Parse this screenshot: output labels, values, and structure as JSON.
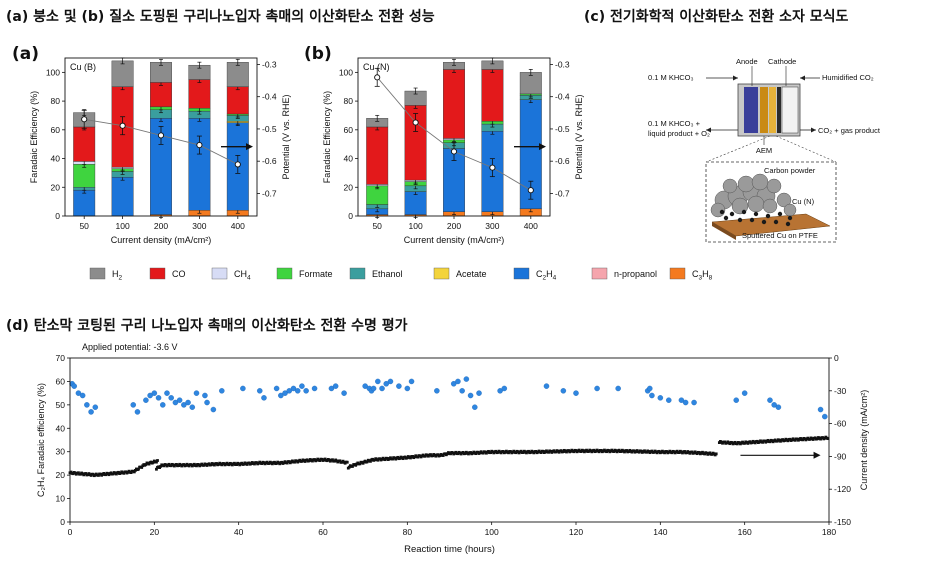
{
  "headers": {
    "ab": "(a) 붕소 및 (b) 질소 도핑된 구리나노입자 촉매의 이산화탄소 전환 성능",
    "c": "(c) 전기화학적 이산화탄소 전환 소자 모식도",
    "d": "(d) 탄소막 코팅된 구리 나노입자 촉매의 이산화탄소 전환 수명 평가"
  },
  "panel_labels": {
    "a": "(a)",
    "b": "(b)"
  },
  "legend": [
    {
      "name": "H",
      "sub": "2",
      "color": "#8c8c8c"
    },
    {
      "name": "CO",
      "sub": "",
      "color": "#e3191b"
    },
    {
      "name": "CH",
      "sub": "4",
      "color": "#d7dcf5"
    },
    {
      "name": "Formate",
      "sub": "",
      "color": "#3fd43f"
    },
    {
      "name": "Ethanol",
      "sub": "",
      "color": "#3a9e9e"
    },
    {
      "name": "Acetate",
      "sub": "",
      "color": "#f3d43c"
    },
    {
      "name": "C",
      "sub": "2",
      "name2": "H",
      "sub2": "4",
      "color": "#1b74d9"
    },
    {
      "name": "n-propanol",
      "sub": "",
      "color": "#f5a5ad"
    },
    {
      "name": "C",
      "sub": "3",
      "name2": "H",
      "sub2": "8",
      "color": "#f47a1f"
    }
  ],
  "chart_data": [
    {
      "type": "bar",
      "name": "Cu (B)",
      "stacked": true,
      "categories": [
        "50",
        "100",
        "200",
        "300",
        "400"
      ],
      "series_order": [
        "C3H8",
        "C2H4",
        "n-propanol",
        "Acetate",
        "Ethanol",
        "Formate",
        "CH4",
        "CO",
        "H2"
      ],
      "series": {
        "C3H8": [
          0,
          0,
          1,
          4,
          4
        ],
        "C2H4": [
          18,
          27,
          67,
          64,
          61
        ],
        "n-propanol": [
          0,
          0,
          0,
          0,
          0
        ],
        "Acetate": [
          0,
          0,
          0,
          0,
          1
        ],
        "Ethanol": [
          2,
          4,
          6,
          5,
          4
        ],
        "Formate": [
          16,
          2,
          2,
          2,
          1
        ],
        "CH4": [
          2,
          1,
          0,
          0,
          0
        ],
        "CO": [
          24,
          56,
          17,
          20,
          19
        ],
        "H2": [
          10,
          18,
          14,
          10,
          17
        ]
      },
      "potential": [
        -0.47,
        -0.49,
        -0.52,
        -0.55,
        -0.61
      ],
      "xlabel": "Current density (mA/cm²)",
      "ylabel": "Faradaic Efficiency (%)",
      "y2label": "Potential (V vs. RHE)",
      "ylim": [
        0,
        110
      ],
      "y2lim": [
        -0.77,
        -0.28
      ],
      "yticks": [
        0,
        20,
        40,
        60,
        80,
        100
      ],
      "y2ticks": [
        "-0.3",
        "-0.4",
        "-0.5",
        "-0.6",
        "-0.7"
      ]
    },
    {
      "type": "bar",
      "name": "Cu (N)",
      "stacked": true,
      "categories": [
        "50",
        "100",
        "200",
        "300",
        "400"
      ],
      "series_order": [
        "C3H8",
        "C2H4",
        "n-propanol",
        "Acetate",
        "Ethanol",
        "Formate",
        "CH4",
        "CO",
        "H2"
      ],
      "series": {
        "C3H8": [
          1,
          1,
          3,
          3,
          5
        ],
        "C2H4": [
          4,
          16,
          44,
          56,
          76
        ],
        "n-propanol": [
          0,
          0,
          0,
          0,
          0
        ],
        "Acetate": [
          0,
          0,
          0,
          0,
          0
        ],
        "Ethanol": [
          3,
          4,
          4,
          5,
          3
        ],
        "Formate": [
          13,
          3,
          2,
          2,
          1
        ],
        "CH4": [
          1,
          1,
          1,
          0,
          0
        ],
        "CO": [
          40,
          52,
          48,
          36,
          0
        ],
        "H2": [
          6,
          10,
          5,
          6,
          15
        ]
      },
      "potential": [
        -0.34,
        -0.48,
        -0.57,
        -0.62,
        -0.69
      ],
      "xlabel": "Current density (mA/cm²)",
      "ylabel": "Faradaic Efficiency (%)",
      "y2label": "Potential (V vs. RHE)",
      "ylim": [
        0,
        110
      ],
      "y2lim": [
        -0.77,
        -0.28
      ],
      "yticks": [
        0,
        20,
        40,
        60,
        80,
        100
      ],
      "y2ticks": [
        "-0.3",
        "-0.4",
        "-0.5",
        "-0.6",
        "-0.7"
      ]
    },
    {
      "type": "scatter",
      "annotation": "Applied potential: -3.6 V",
      "xlabel": "Reaction time (hours)",
      "ylabel": "C₂H₄ Faradaic efficiency (%)",
      "y2label": "Current density (mA/cm²)",
      "xlim": [
        0,
        180
      ],
      "ylim": [
        0,
        70
      ],
      "y2lim": [
        -150,
        0
      ],
      "xticks": [
        0,
        20,
        40,
        60,
        80,
        100,
        120,
        140,
        160,
        180
      ],
      "yticks": [
        0,
        10,
        20,
        30,
        40,
        50,
        60,
        70
      ],
      "y2ticks": [
        0,
        -30,
        -60,
        -90,
        -120,
        -150
      ],
      "fe_points": [
        [
          0.5,
          59
        ],
        [
          1,
          58
        ],
        [
          2,
          55
        ],
        [
          3,
          54
        ],
        [
          4,
          50
        ],
        [
          5,
          47
        ],
        [
          6,
          49
        ],
        [
          15,
          50
        ],
        [
          16,
          47
        ],
        [
          18,
          52
        ],
        [
          19,
          54
        ],
        [
          20,
          55
        ],
        [
          21,
          53
        ],
        [
          22,
          50
        ],
        [
          23,
          55
        ],
        [
          24,
          53
        ],
        [
          25,
          51
        ],
        [
          26,
          52
        ],
        [
          27,
          50
        ],
        [
          28,
          51
        ],
        [
          29,
          49
        ],
        [
          30,
          55
        ],
        [
          32,
          54
        ],
        [
          32.5,
          51
        ],
        [
          34,
          48
        ],
        [
          36,
          56
        ],
        [
          41,
          57
        ],
        [
          45,
          56
        ],
        [
          46,
          53
        ],
        [
          49,
          57
        ],
        [
          50,
          54
        ],
        [
          51,
          55
        ],
        [
          52,
          56
        ],
        [
          53,
          57
        ],
        [
          54,
          56
        ],
        [
          55,
          58
        ],
        [
          56,
          56
        ],
        [
          58,
          57
        ],
        [
          62,
          57
        ],
        [
          63,
          58
        ],
        [
          65,
          55
        ],
        [
          70,
          58
        ],
        [
          71,
          57
        ],
        [
          71.5,
          56
        ],
        [
          72,
          57
        ],
        [
          73,
          60
        ],
        [
          74,
          57
        ],
        [
          75,
          59
        ],
        [
          76,
          60
        ],
        [
          78,
          58
        ],
        [
          80,
          57
        ],
        [
          81,
          60
        ],
        [
          87,
          56
        ],
        [
          91,
          59
        ],
        [
          92,
          60
        ],
        [
          93,
          56
        ],
        [
          94,
          61
        ],
        [
          95,
          54
        ],
        [
          96,
          49
        ],
        [
          97,
          55
        ],
        [
          102,
          56
        ],
        [
          103,
          57
        ],
        [
          113,
          58
        ],
        [
          117,
          56
        ],
        [
          120,
          55
        ],
        [
          125,
          57
        ],
        [
          130,
          57
        ],
        [
          137,
          56
        ],
        [
          137.5,
          57
        ],
        [
          138,
          54
        ],
        [
          140,
          53
        ],
        [
          142,
          52
        ],
        [
          145,
          52
        ],
        [
          146,
          51
        ],
        [
          148,
          51
        ],
        [
          158,
          52
        ],
        [
          160,
          55
        ],
        [
          166,
          52
        ],
        [
          167,
          50
        ],
        [
          168,
          49
        ],
        [
          178,
          48
        ],
        [
          179,
          45
        ]
      ],
      "current_segments": [
        {
          "x": [
            0,
            3,
            6,
            9,
            12,
            15,
            18,
            20,
            21
          ],
          "y": [
            -105,
            -106,
            -107,
            -106,
            -105,
            -104,
            -97,
            -95,
            -94
          ]
        },
        {
          "x": [
            20.5,
            22,
            26,
            30,
            35,
            40,
            45,
            50,
            55,
            60,
            63,
            66
          ],
          "y": [
            -101,
            -98,
            -98,
            -98,
            -97,
            -97,
            -96,
            -96,
            -94,
            -93,
            -94,
            -96
          ]
        },
        {
          "x": [
            66,
            68,
            70,
            72,
            76,
            80,
            85,
            88,
            90,
            95,
            100,
            110,
            120,
            130,
            140,
            145,
            150,
            153.5
          ],
          "y": [
            -100,
            -97,
            -95,
            -93,
            -92,
            -91,
            -89,
            -89,
            -87,
            -87,
            -86,
            -86,
            -85,
            -85,
            -86,
            -86,
            -87,
            -88
          ]
        },
        {
          "x": [
            154,
            158,
            162,
            166,
            170,
            175,
            180
          ],
          "y": [
            -77,
            -78,
            -77,
            -76,
            -75,
            -74,
            -73
          ]
        }
      ],
      "arrow": {
        "x": [
          159,
          178
        ],
        "y": [
          -89,
          -89
        ]
      }
    }
  ],
  "schematic": {
    "labels": {
      "anode": "Anode",
      "cathode": "Cathode",
      "in_left": "0.1 M KHCO₃",
      "in_right": "Humidified CO₂",
      "out_left_1": "0.1 M KHCO₃ +",
      "out_left_2": "liquid product + O₂",
      "out_right": "CO₂ + gas product",
      "aem": "AEM",
      "carbon": "Carbon powder",
      "cun": "Cu (N)",
      "sputter": "Sputtered Cu on PTFE"
    }
  }
}
